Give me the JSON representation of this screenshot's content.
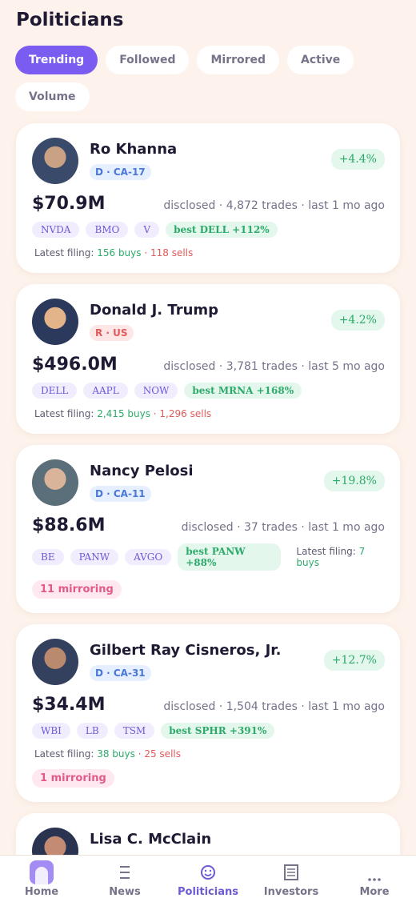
{
  "header": {
    "title": "Politicians"
  },
  "tabs": {
    "items": [
      "Trending",
      "Followed",
      "Mirrored",
      "Active",
      "Volume"
    ],
    "active": 0
  },
  "cards": [
    {
      "name": "Ro Khanna",
      "party": "D · CA-17",
      "party_color": "#4a78d6",
      "party_bg": "#e6efff",
      "change": "+4.4%",
      "amount": "$70.9M",
      "meta": "disclosed · 4,872 trades · last 1 mo ago",
      "tickers": [
        "NVDA",
        "BMO",
        "V"
      ],
      "best": "best DELL +112%",
      "filing": {
        "label": "Latest filing:",
        "buys": "156 buys",
        "sells": "· 118 sells"
      },
      "avatar": [
        "#3a4a6a",
        "#c9a184"
      ]
    },
    {
      "name": "Donald J. Trump",
      "party": "R · US",
      "party_color": "#e05a5a",
      "party_bg": "#ffe6e6",
      "change": "+4.2%",
      "amount": "$496.0M",
      "meta": "disclosed · 3,781 trades · last 5 mo ago",
      "tickers": [
        "DELL",
        "AAPL",
        "NOW"
      ],
      "best": "best MRNA +168%",
      "filing": {
        "label": "Latest filing:",
        "buys": "2,415 buys",
        "sells": "· 1,296 sells"
      },
      "avatar": [
        "#2b3a5c",
        "#e3b48a"
      ]
    },
    {
      "name": "Nancy Pelosi",
      "party": "D · CA-11",
      "party_color": "#4a78d6",
      "party_bg": "#e6efff",
      "change": "+19.8%",
      "amount": "$88.6M",
      "meta": "disclosed · 37 trades · last 1 mo ago",
      "tickers": [
        "BE",
        "PANW",
        "AVGO"
      ],
      "best": "best PANW +88%",
      "filing": {
        "label": "Latest filing:",
        "buys": "7 buys"
      },
      "filing_inline": true,
      "mirroring": "11 mirroring",
      "avatar": [
        "#5a6f7a",
        "#d9b49a"
      ]
    },
    {
      "name": "Gilbert Ray Cisneros, Jr.",
      "party": "D · CA-31",
      "party_color": "#4a78d6",
      "party_bg": "#e6efff",
      "change": "+12.7%",
      "amount": "$34.4M",
      "meta": "disclosed · 1,504 trades · last 1 mo ago",
      "tickers": [
        "WBI",
        "LB",
        "TSM"
      ],
      "best": "best SPHR +391%",
      "filing": {
        "label": "Latest filing:",
        "buys": "38 buys",
        "sells": "· 25 sells"
      },
      "mirroring": "1 mirroring",
      "avatar": [
        "#33405e",
        "#b98a6e"
      ]
    },
    {
      "name": "Lisa C. McClain",
      "avatar": [
        "#2a3450",
        "#c38a74"
      ]
    }
  ],
  "nav": {
    "items": [
      "Home",
      "News",
      "Politicians",
      "Investors",
      "More"
    ],
    "active": 2
  }
}
